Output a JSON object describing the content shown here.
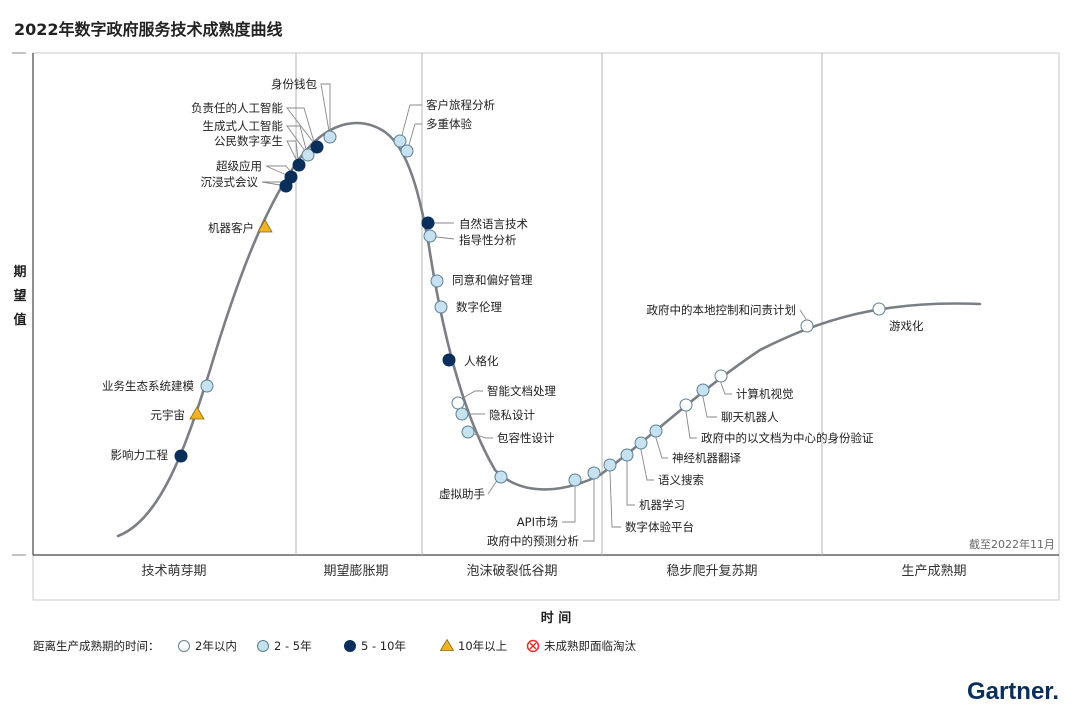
{
  "chart_data": {
    "type": "hype-cycle",
    "title": "2022年数字政府服务技术成熟度曲线",
    "ylabel": "期望值",
    "xlabel": "时 间",
    "date_note": "截至2022年11月",
    "phases": [
      "技术萌芽期",
      "期望膨胀期",
      "泡沫破裂低谷期",
      "稳步爬升复苏期",
      "生产成熟期"
    ],
    "series": [
      {
        "name": "影响力工程",
        "category": "5-10",
        "phase": "技术萌芽期"
      },
      {
        "name": "元宇宙",
        "category": "10+",
        "phase": "技术萌芽期"
      },
      {
        "name": "业务生态系统建模",
        "category": "2-5",
        "phase": "技术萌芽期"
      },
      {
        "name": "机器客户",
        "category": "10+",
        "phase": "技术萌芽期"
      },
      {
        "name": "沉浸式会议",
        "category": "5-10",
        "phase": "技术萌芽期"
      },
      {
        "name": "超级应用",
        "category": "5-10",
        "phase": "技术萌芽期"
      },
      {
        "name": "公民数字孪生",
        "category": "5-10",
        "phase": "期望膨胀期"
      },
      {
        "name": "生成式人工智能",
        "category": "2-5",
        "phase": "期望膨胀期"
      },
      {
        "name": "负责任的人工智能",
        "category": "5-10",
        "phase": "期望膨胀期"
      },
      {
        "name": "身份钱包",
        "category": "2-5",
        "phase": "期望膨胀期"
      },
      {
        "name": "客户旅程分析",
        "category": "2-5",
        "phase": "期望膨胀期"
      },
      {
        "name": "多重体验",
        "category": "2-5",
        "phase": "期望膨胀期"
      },
      {
        "name": "自然语言技术",
        "category": "5-10",
        "phase": "泡沫破裂低谷期"
      },
      {
        "name": "指导性分析",
        "category": "2-5",
        "phase": "泡沫破裂低谷期"
      },
      {
        "name": "同意和偏好管理",
        "category": "2-5",
        "phase": "泡沫破裂低谷期"
      },
      {
        "name": "数字伦理",
        "category": "2-5",
        "phase": "泡沫破裂低谷期"
      },
      {
        "name": "人格化",
        "category": "5-10",
        "phase": "泡沫破裂低谷期"
      },
      {
        "name": "智能文档处理",
        "category": "<2",
        "phase": "泡沫破裂低谷期"
      },
      {
        "name": "隐私设计",
        "category": "2-5",
        "phase": "泡沫破裂低谷期"
      },
      {
        "name": "包容性设计",
        "category": "2-5",
        "phase": "泡沫破裂低谷期"
      },
      {
        "name": "虚拟助手",
        "category": "2-5",
        "phase": "泡沫破裂低谷期"
      },
      {
        "name": "API市场",
        "category": "2-5",
        "phase": "泡沫破裂低谷期"
      },
      {
        "name": "政府中的预测分析",
        "category": "2-5",
        "phase": "泡沫破裂低谷期"
      },
      {
        "name": "数字体验平台",
        "category": "2-5",
        "phase": "稳步爬升复苏期"
      },
      {
        "name": "机器学习",
        "category": "2-5",
        "phase": "稳步爬升复苏期"
      },
      {
        "name": "语义搜索",
        "category": "2-5",
        "phase": "稳步爬升复苏期"
      },
      {
        "name": "神经机器翻译",
        "category": "2-5",
        "phase": "稳步爬升复苏期"
      },
      {
        "name": "政府中的以文档为中心的身份验证",
        "category": "<2",
        "phase": "稳步爬升复苏期"
      },
      {
        "name": "聊天机器人",
        "category": "2-5",
        "phase": "稳步爬升复苏期"
      },
      {
        "name": "计算机视觉",
        "category": "<2",
        "phase": "稳步爬升复苏期"
      },
      {
        "name": "政府中的本地控制和问责计划",
        "category": "<2",
        "phase": "稳步爬升复苏期"
      },
      {
        "name": "游戏化",
        "category": "<2",
        "phase": "生产成熟期"
      }
    ],
    "legend": {
      "title": "距离生产成熟期的时间：",
      "items": [
        {
          "key": "<2",
          "label": "2年以内",
          "shape": "circle",
          "color": "#ffffff"
        },
        {
          "key": "2-5",
          "label": "2 - 5年",
          "shape": "circle",
          "color": "#c6e2f0"
        },
        {
          "key": "5-10",
          "label": "5 - 10年",
          "shape": "circle",
          "color": "#0b2f5b"
        },
        {
          "key": "10+",
          "label": "10年以上",
          "shape": "triangle",
          "color": "#f0b323"
        },
        {
          "key": "obsolete",
          "label": "未成熟即面临淘汰",
          "shape": "cross",
          "color": "#e0302b"
        }
      ]
    },
    "grid": false,
    "legend_position": "bottom"
  },
  "brand": "Gartner."
}
